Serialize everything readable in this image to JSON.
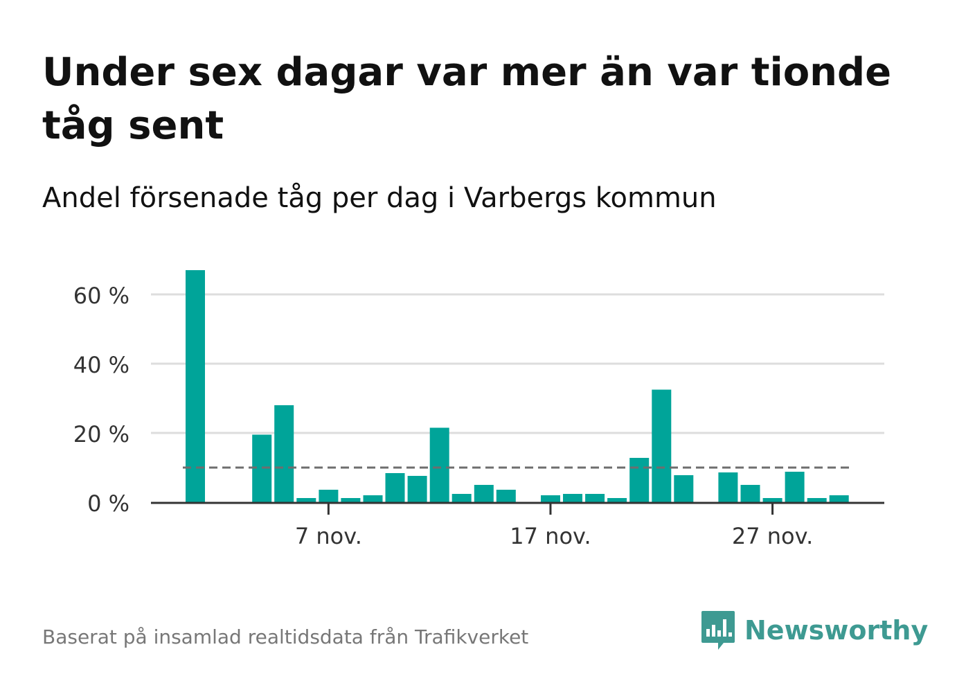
{
  "title": "Under sex dagar var mer än var tionde tåg sent",
  "subtitle": "Andel försenade tåg per dag i Varbergs kommun",
  "footer": "Baserat på insamlad realtidsdata från Trafikverket",
  "logo": {
    "text": "Newsworthy",
    "icon": "bar-chart-speech-bubble-icon"
  },
  "colors": {
    "bar": "#00a499",
    "reference_line": "#6e6e6e",
    "grid": "#dddddd",
    "axis": "#333333",
    "logo": "#3e9a92"
  },
  "chart_data": {
    "type": "bar",
    "title": "Under sex dagar var mer än var tionde tåg sent",
    "subtitle": "Andel försenade tåg per dag i Varbergs kommun",
    "xlabel": "",
    "ylabel": "",
    "y_unit": "%",
    "ylim": [
      0,
      70
    ],
    "yticks": [
      0,
      20,
      40,
      60
    ],
    "ytick_labels": [
      "0 %",
      "20 %",
      "40 %",
      "60 %"
    ],
    "xticks": [
      "7 nov.",
      "17 nov.",
      "27 nov."
    ],
    "grid": true,
    "reference_line": {
      "value": 10,
      "style": "dashed"
    },
    "points": [
      {
        "date": "1 nov.",
        "value": 67.0
      },
      {
        "date": "4 nov.",
        "value": 19.5
      },
      {
        "date": "5 nov.",
        "value": 28.0
      },
      {
        "date": "6 nov.",
        "value": 1.2
      },
      {
        "date": "7 nov.",
        "value": 3.6
      },
      {
        "date": "8 nov.",
        "value": 1.2
      },
      {
        "date": "9 nov.",
        "value": 2.0
      },
      {
        "date": "10 nov.",
        "value": 8.4
      },
      {
        "date": "11 nov.",
        "value": 7.6
      },
      {
        "date": "12 nov.",
        "value": 21.5
      },
      {
        "date": "13 nov.",
        "value": 2.4
      },
      {
        "date": "14 nov.",
        "value": 5.0
      },
      {
        "date": "15 nov.",
        "value": 3.6
      },
      {
        "date": "17 nov.",
        "value": 2.0
      },
      {
        "date": "18 nov.",
        "value": 2.4
      },
      {
        "date": "19 nov.",
        "value": 2.4
      },
      {
        "date": "20 nov.",
        "value": 1.2
      },
      {
        "date": "21 nov.",
        "value": 12.8
      },
      {
        "date": "22 nov.",
        "value": 32.5
      },
      {
        "date": "23 nov.",
        "value": 7.8
      },
      {
        "date": "25 nov.",
        "value": 8.6
      },
      {
        "date": "26 nov.",
        "value": 5.0
      },
      {
        "date": "27 nov.",
        "value": 1.2
      },
      {
        "date": "28 nov.",
        "value": 8.8
      },
      {
        "date": "29 nov.",
        "value": 1.2
      },
      {
        "date": "30 nov.",
        "value": 2.0
      }
    ]
  }
}
